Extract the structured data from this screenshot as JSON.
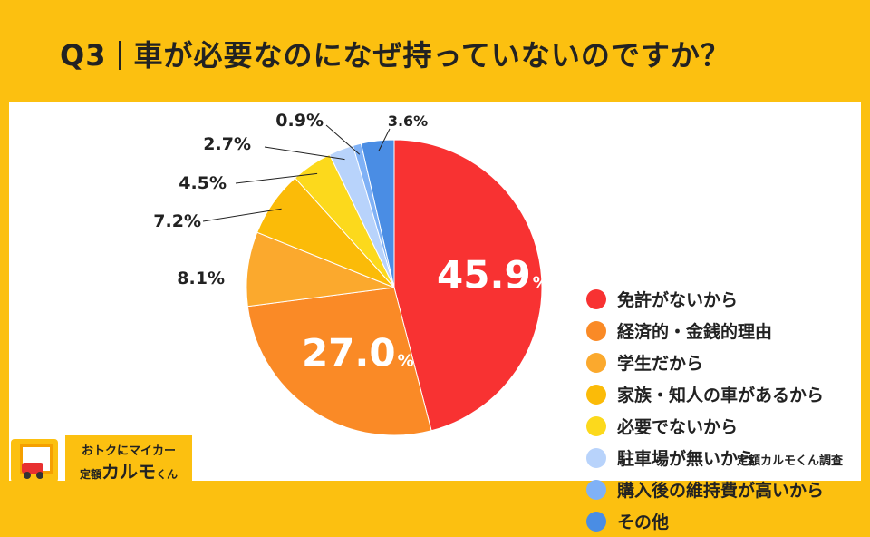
{
  "header": {
    "q_number": "Q3",
    "question": "車が必要なのになぜ持っていないのですか？"
  },
  "chart_data": {
    "type": "pie",
    "title": "車が必要なのになぜ持っていないのですか？",
    "slices": [
      {
        "label": "免許がないから",
        "value": 45.9,
        "display": "45.9",
        "unit": "%",
        "color": "#f83232"
      },
      {
        "label": "経済的・金銭的理由",
        "value": 27.0,
        "display": "27.0",
        "unit": "%",
        "color": "#fa8a26"
      },
      {
        "label": "学生だから",
        "value": 8.1,
        "display": "8.1%",
        "color": "#fba92d"
      },
      {
        "label": "家族・知人の車があるから",
        "value": 7.2,
        "display": "7.2%",
        "color": "#fbbb08"
      },
      {
        "label": "必要でないから",
        "value": 4.5,
        "display": "4.5%",
        "color": "#fcd91c"
      },
      {
        "label": "駐車場が無いから",
        "value": 2.7,
        "display": "2.7%",
        "color": "#b8d3fb"
      },
      {
        "label": "購入後の維持費が高いから",
        "value": 0.9,
        "display": "0.9%",
        "color": "#7fb1f6"
      },
      {
        "label": "その他",
        "value": 3.6,
        "display": "3.6%",
        "color": "#4a8de4"
      }
    ],
    "legend_position": "right"
  },
  "source": "定額カルモくん調査",
  "logo": {
    "line1": "おトクにマイカー",
    "prefix": "定額",
    "brand": "カルモ",
    "suffix": "くん"
  }
}
